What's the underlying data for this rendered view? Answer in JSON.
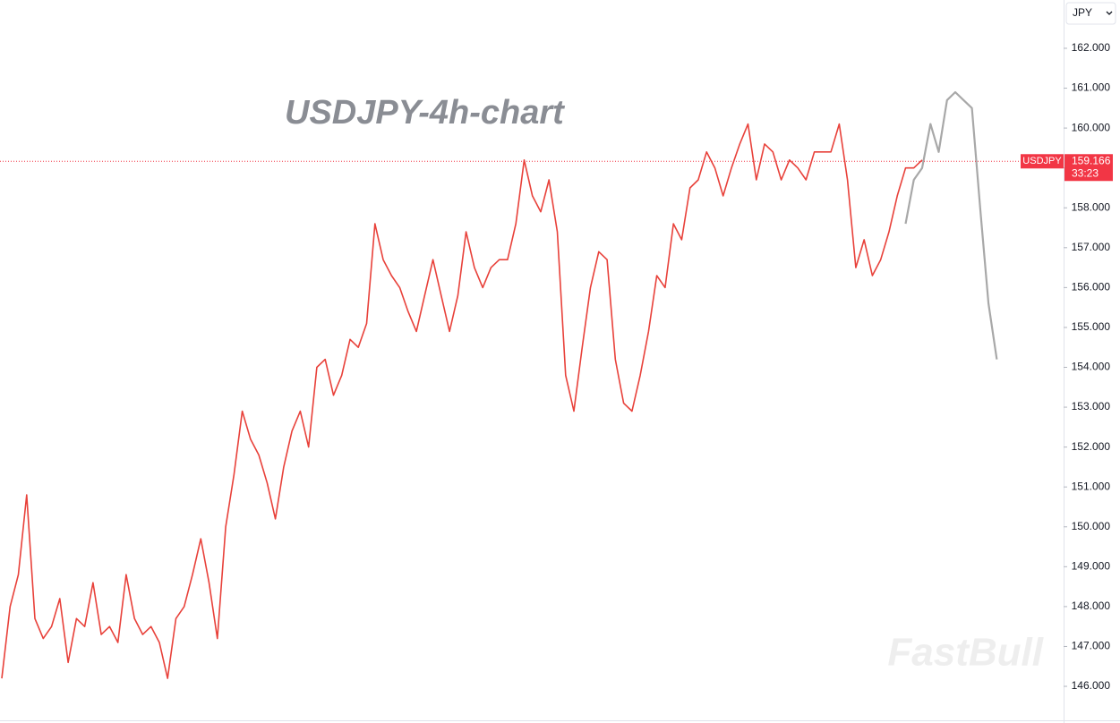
{
  "chart_data": {
    "type": "line",
    "title": "USDJPY-4h-chart",
    "symbol": "USDJPY",
    "currency": "JPY",
    "watermark": "FastBull",
    "last_price": 159.166,
    "countdown": "33:23",
    "ylim": [
      145.7,
      162.3
    ],
    "yticks": [
      {
        "value": 146,
        "label": "146.000"
      },
      {
        "value": 147,
        "label": "147.000"
      },
      {
        "value": 148,
        "label": "148.000"
      },
      {
        "value": 149,
        "label": "149.000"
      },
      {
        "value": 150,
        "label": "150.000"
      },
      {
        "value": 151,
        "label": "151.000"
      },
      {
        "value": 152,
        "label": "152.000"
      },
      {
        "value": 153,
        "label": "153.000"
      },
      {
        "value": 154,
        "label": "154.000"
      },
      {
        "value": 155,
        "label": "155.000"
      },
      {
        "value": 156,
        "label": "156.000"
      },
      {
        "value": 157,
        "label": "157.000"
      },
      {
        "value": 158,
        "label": "158.000"
      },
      {
        "value": 159,
        "label": "159.000"
      },
      {
        "value": 160,
        "label": "160.000"
      },
      {
        "value": 161,
        "label": "161.000"
      },
      {
        "value": 162,
        "label": "162.000"
      }
    ],
    "series": [
      {
        "color": "#e8413a",
        "values": [
          146.2,
          148.0,
          148.8,
          150.8,
          147.7,
          147.2,
          147.5,
          148.2,
          146.6,
          147.7,
          147.5,
          148.6,
          147.3,
          147.5,
          147.1,
          148.8,
          147.7,
          147.3,
          147.5,
          147.1,
          146.2,
          147.7,
          148.0,
          148.8,
          149.7,
          148.6,
          147.2,
          150.0,
          151.3,
          152.9,
          152.2,
          151.8,
          151.1,
          150.2,
          151.5,
          152.4,
          152.9,
          152.0,
          154.0,
          154.2,
          153.3,
          153.8,
          154.7,
          154.5,
          155.1,
          157.6,
          156.7,
          156.3,
          156.0,
          155.4,
          154.9,
          155.8,
          156.7,
          155.8,
          154.9,
          155.8,
          157.4,
          156.5,
          156.0,
          156.5,
          156.7,
          156.7,
          157.6,
          159.2,
          158.3,
          157.9,
          158.7,
          157.4,
          153.8,
          152.9,
          154.5,
          156.0,
          156.9,
          156.7,
          154.2,
          153.1,
          152.9,
          153.8,
          154.9,
          156.3,
          156.0,
          157.6,
          157.2,
          158.5,
          158.7,
          159.4,
          159.0,
          158.3,
          159.0,
          159.6,
          160.1,
          158.7,
          159.6,
          159.4,
          158.7,
          159.2,
          159.0,
          158.7,
          159.4,
          159.4,
          159.4,
          160.1,
          158.7,
          156.5,
          157.2,
          156.3,
          156.7,
          157.4,
          158.3,
          159.0,
          159.0,
          159.2,
          null,
          null,
          null,
          null,
          null,
          null,
          null,
          null,
          null
        ]
      },
      {
        "color": "#a8a8a8",
        "values": [
          null,
          null,
          null,
          null,
          null,
          null,
          null,
          null,
          null,
          null,
          null,
          null,
          null,
          null,
          null,
          null,
          null,
          null,
          null,
          null,
          null,
          null,
          null,
          null,
          null,
          null,
          null,
          null,
          null,
          null,
          null,
          null,
          null,
          null,
          null,
          null,
          null,
          null,
          null,
          null,
          null,
          null,
          null,
          null,
          null,
          null,
          null,
          null,
          null,
          null,
          null,
          null,
          null,
          null,
          null,
          null,
          null,
          null,
          null,
          null,
          null,
          null,
          null,
          null,
          null,
          null,
          null,
          null,
          null,
          null,
          null,
          null,
          null,
          null,
          null,
          null,
          null,
          null,
          null,
          null,
          null,
          null,
          null,
          null,
          null,
          null,
          null,
          null,
          null,
          null,
          null,
          null,
          null,
          null,
          null,
          null,
          null,
          null,
          null,
          null,
          null,
          null,
          null,
          null,
          null,
          null,
          null,
          null,
          null,
          157.6,
          158.7,
          159.0,
          160.1,
          159.4,
          160.7,
          160.9,
          160.7,
          160.5,
          158.0,
          155.6,
          154.2
        ]
      }
    ]
  }
}
